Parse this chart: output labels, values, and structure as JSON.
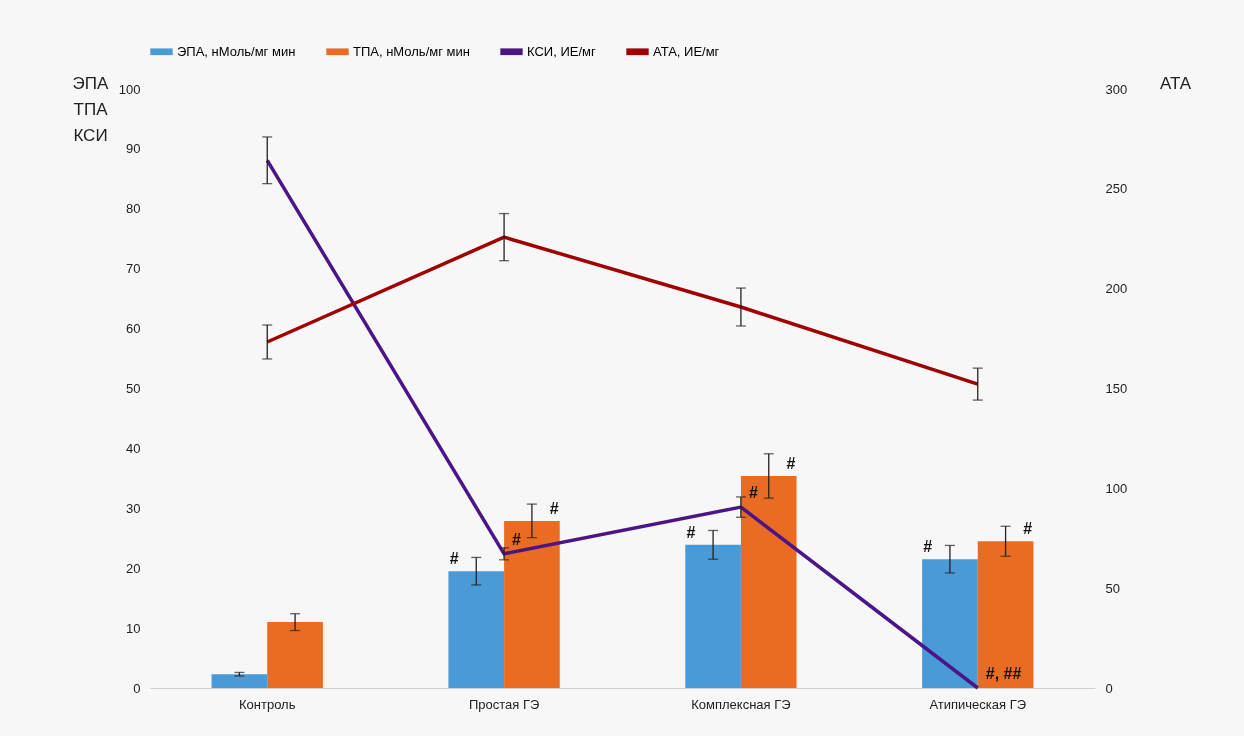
{
  "chart_data": {
    "type": "bar",
    "ylabel": "ЭПА ТПА КСИ",
    "y2label": "АТА",
    "categories": [
      "Контроль",
      "Простая ГЭ",
      "Комплексная ГЭ",
      "Атипическая ГЭ"
    ],
    "series": [
      {
        "name": "ЭПА, нМоль/мг мин",
        "color": "#4a9ad8",
        "values": [
          2.3,
          19.5,
          23.9,
          21.5
        ],
        "errors": [
          0.3,
          2.3,
          2.4,
          2.3
        ]
      },
      {
        "name": "ТПА, нМоль/мг мин",
        "color": "#e96c22",
        "values": [
          11.0,
          27.9,
          35.4,
          24.5
        ],
        "errors": [
          1.4,
          2.8,
          3.7,
          2.5
        ]
      },
      {
        "name": "КСИ, ИЕ/мг",
        "type": "line",
        "color": "#4b1588",
        "values": [
          88.1,
          22.4,
          30.2,
          0
        ],
        "errors": [
          3.9,
          1.0,
          1.7,
          null
        ]
      },
      {
        "name": "АТА, ИЕ/мг",
        "type": "line",
        "axis": "y2",
        "color": "#a00000",
        "values": [
          173.3,
          225.8,
          190.8,
          152.2
        ],
        "errors": [
          8.5,
          11.8,
          9.5,
          8
        ]
      }
    ],
    "ylim": [
      0,
      100
    ],
    "yticks": [
      0,
      10,
      20,
      30,
      40,
      50,
      60,
      70,
      80,
      90,
      100
    ],
    "y2lim": [
      0,
      300
    ],
    "y2ticks": [
      0,
      50,
      100,
      150,
      200,
      250,
      300
    ],
    "grid": false,
    "legend": "top",
    "marker": "none",
    "annotations": [
      {
        "text": "#",
        "x": "Простая ГЭ",
        "y": 19.5
      },
      {
        "text": "#",
        "x": "Простая ГЭ",
        "y": 22.4
      },
      {
        "text": "#",
        "x": "Простая ГЭ",
        "y": 27.9
      },
      {
        "text": "#",
        "x": "Комплексная ГЭ",
        "y": 23.9
      },
      {
        "text": "#",
        "x": "Комплексная ГЭ",
        "y": 30.2
      },
      {
        "text": "#",
        "x": "Комплексная ГЭ",
        "y": 35.4
      },
      {
        "text": "#",
        "x": "Атипическая ГЭ",
        "y": 21.5
      },
      {
        "text": "#, ##",
        "x": "Атипическая ГЭ",
        "y": 0
      },
      {
        "text": "#",
        "x": "Атипическая ГЭ",
        "y": 24.5
      }
    ]
  }
}
